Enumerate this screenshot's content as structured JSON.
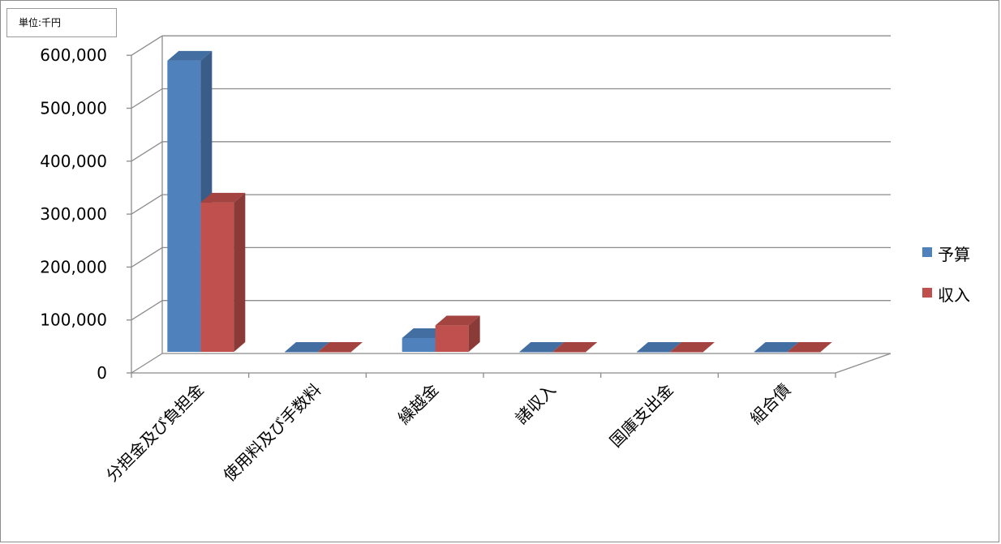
{
  "unit_label": "単位:千円",
  "chart_data": {
    "type": "bar",
    "categories": [
      "分担金及び負担金",
      "使用料及び手数料",
      "繰越金",
      "諸収入",
      "国庫支出金",
      "組合債"
    ],
    "series": [
      {
        "name": "予算",
        "color": "#4f81bd",
        "values": [
          550000,
          0,
          26000,
          0,
          0,
          0
        ]
      },
      {
        "name": "収入",
        "color": "#c0504d",
        "values": [
          282000,
          0,
          50000,
          0,
          0,
          0
        ]
      }
    ],
    "yticks": [
      "0",
      "100,000",
      "200,000",
      "300,000",
      "400,000",
      "500,000",
      "600,000"
    ],
    "ylim": [
      0,
      600000
    ],
    "grid": true,
    "legend_position": "right",
    "style": "3d-clustered"
  }
}
